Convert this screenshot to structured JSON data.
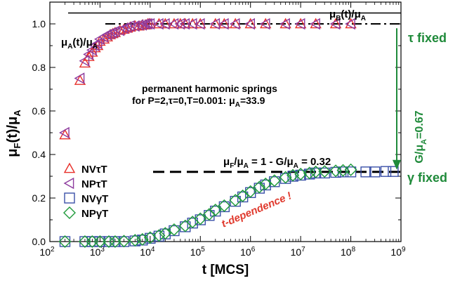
{
  "chart_data": {
    "type": "scatter",
    "x_scale": "log",
    "xlim": [
      100,
      1000000000
    ],
    "ylim": [
      0,
      1.1
    ],
    "xlabel": "t [MCS]",
    "ylabel": {
      "main": "μ",
      "sub1": "F",
      "mid": "(t)/μ",
      "sub2": "A"
    },
    "x_ticks": [
      {
        "value": 100,
        "base": "10",
        "exp": "2"
      },
      {
        "value": 1000,
        "base": "10",
        "exp": "3"
      },
      {
        "value": 10000,
        "base": "10",
        "exp": "4"
      },
      {
        "value": 100000,
        "base": "10",
        "exp": "5"
      },
      {
        "value": 1000000,
        "base": "10",
        "exp": "6"
      },
      {
        "value": 10000000,
        "base": "10",
        "exp": "7"
      },
      {
        "value": 100000000,
        "base": "10",
        "exp": "8"
      },
      {
        "value": 1000000000,
        "base": "10",
        "exp": "9"
      }
    ],
    "y_ticks": [
      {
        "value": 0,
        "label": "0.0"
      },
      {
        "value": 0.2,
        "label": "0.2"
      },
      {
        "value": 0.4,
        "label": "0.4"
      },
      {
        "value": 0.6,
        "label": "0.6"
      },
      {
        "value": 0.8,
        "label": "0.8"
      },
      {
        "value": 1.0,
        "label": "1.0"
      }
    ],
    "series": [
      {
        "name": "NVτT",
        "marker": "triangle-up",
        "color": "#e8302a",
        "x": [
          200,
          400,
          500,
          600,
          700,
          800,
          900,
          1000,
          1200,
          1400,
          1600,
          1800,
          2000,
          2500,
          3000,
          3500,
          4000,
          5000,
          6000,
          7000,
          8000,
          9000,
          10000,
          15000,
          20000,
          30000,
          40000,
          50000,
          70000,
          100000,
          200000,
          300000,
          500000,
          1000000,
          2000000,
          5000000,
          10000000,
          20000000,
          50000000,
          100000000
        ],
        "y": [
          0.49,
          0.74,
          0.82,
          0.85,
          0.87,
          0.89,
          0.9,
          0.92,
          0.93,
          0.94,
          0.95,
          0.955,
          0.96,
          0.97,
          0.975,
          0.98,
          0.985,
          0.99,
          0.99,
          0.995,
          0.995,
          1.0,
          1.0,
          1.0,
          1.0,
          1.0,
          1.0,
          1.0,
          1.0,
          1.0,
          1.0,
          1.0,
          1.0,
          1.0,
          1.0,
          1.0,
          1.0,
          1.0,
          1.0,
          1.0
        ]
      },
      {
        "name": "NPτT",
        "marker": "triangle-left",
        "color": "#8d3b9e",
        "x": [
          200,
          400,
          500,
          600,
          700,
          800,
          900,
          1000,
          1200,
          1400,
          1600,
          1800,
          2000,
          2500,
          3000,
          3500,
          4000,
          5000,
          6000,
          7000,
          8000,
          9000,
          10000,
          15000,
          20000,
          30000,
          40000,
          50000,
          70000,
          100000,
          200000,
          300000,
          500000,
          1000000,
          2000000,
          5000000,
          10000000,
          20000000,
          50000000,
          100000000
        ],
        "y": [
          0.5,
          0.75,
          0.83,
          0.86,
          0.88,
          0.9,
          0.91,
          0.93,
          0.94,
          0.95,
          0.955,
          0.96,
          0.965,
          0.97,
          0.98,
          0.985,
          0.99,
          0.99,
          0.995,
          0.995,
          1.0,
          1.0,
          1.0,
          1.0,
          1.0,
          1.0,
          1.0,
          1.0,
          1.0,
          1.0,
          1.0,
          1.0,
          1.0,
          1.0,
          1.0,
          1.0,
          1.0,
          1.0,
          1.0,
          1.0
        ]
      },
      {
        "name": "NVγT",
        "marker": "square",
        "color": "#3a50a8",
        "x": [
          200,
          500,
          700,
          1000,
          1500,
          2000,
          3000,
          5000,
          7000,
          10000,
          15000,
          20000,
          30000,
          50000,
          70000,
          100000,
          150000,
          200000,
          300000,
          500000,
          700000,
          1000000,
          1500000,
          2000000,
          3000000,
          5000000,
          7000000,
          10000000,
          15000000,
          20000000,
          30000000,
          50000000,
          70000000,
          100000000,
          200000000,
          300000000,
          500000000,
          700000000
        ],
        "y": [
          0.0,
          0.0,
          0.0,
          0.0,
          0.0,
          0.0,
          0.0,
          0.003,
          0.007,
          0.015,
          0.025,
          0.035,
          0.05,
          0.068,
          0.085,
          0.1,
          0.12,
          0.14,
          0.16,
          0.185,
          0.205,
          0.225,
          0.245,
          0.26,
          0.275,
          0.29,
          0.3,
          0.305,
          0.31,
          0.315,
          0.315,
          0.318,
          0.32,
          0.32,
          0.32,
          0.32,
          0.322,
          0.322
        ]
      },
      {
        "name": "NPγT",
        "marker": "diamond",
        "color": "#1e9a3a",
        "x": [
          200,
          500,
          700,
          1000,
          1500,
          2000,
          3000,
          5000,
          7000,
          10000,
          15000,
          20000,
          30000,
          50000,
          70000,
          100000,
          150000,
          200000,
          300000,
          500000,
          700000,
          1000000,
          1500000,
          2000000,
          3000000,
          5000000,
          7000000,
          10000000,
          15000000,
          20000000,
          30000000,
          50000000,
          70000000,
          100000000
        ],
        "y": [
          0.0,
          0.0,
          0.0,
          0.0,
          0.0,
          0.0,
          0.002,
          0.006,
          0.01,
          0.018,
          0.028,
          0.038,
          0.055,
          0.072,
          0.09,
          0.105,
          0.125,
          0.145,
          0.165,
          0.19,
          0.21,
          0.23,
          0.25,
          0.265,
          0.28,
          0.295,
          0.305,
          0.31,
          0.315,
          0.32,
          0.322,
          0.325,
          0.327,
          0.33
        ]
      }
    ],
    "reference_lines": [
      {
        "y": 1.05,
        "style": "solid",
        "color": "#000000"
      },
      {
        "y": 1.0,
        "style": "dashdot",
        "color": "#000000"
      },
      {
        "y": 0.32,
        "style": "dashed",
        "color": "#000000"
      }
    ],
    "arrow": {
      "from_y": 0.98,
      "to_y": 0.33,
      "color": "#1f8a3a"
    },
    "annotations": {
      "muB": {
        "a": "μ",
        "sub1": "B",
        "b": "(t)/μ",
        "sub2": "A"
      },
      "muA": {
        "a": "μ",
        "sub1": "A",
        "b": "(t)/μ",
        "sub2": "A"
      },
      "tau_fixed": "τ fixed",
      "gamma_fixed": "γ fixed",
      "springs_line1": "permanent harmonic springs",
      "springs_line2": "for P=2,τ=0,T=0.001: μ",
      "springs_sub": "A",
      "springs_val": "=33.9",
      "g_a": "G/μ",
      "g_sub": "A",
      "g_b": "=0.67",
      "muF_a": "μ",
      "muF_sub1": "F",
      "muF_b": "/μ",
      "muF_sub2": "A",
      "muF_c": "  = 1 - G/μ",
      "muF_sub3": "A",
      "muF_d": " = 0.32",
      "t_dependence": "t-dependence !"
    },
    "colors": {
      "green": "#1f8a3a",
      "red": "#e03a2e"
    },
    "legend_position": "bottom-left"
  }
}
